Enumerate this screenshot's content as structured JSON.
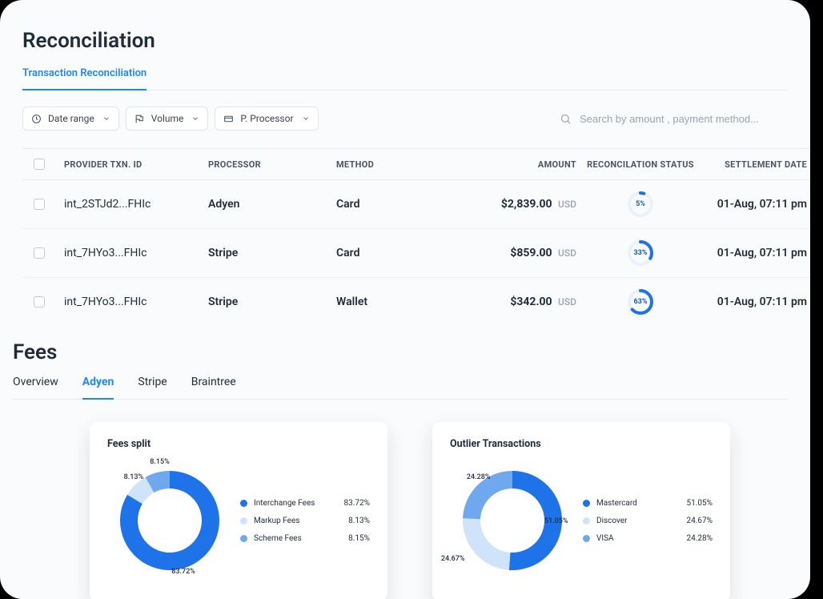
{
  "colors": {
    "accent": "#1e88f2",
    "text": "#1f2c3a",
    "muted": "#9aa4b2",
    "border": "#e6e9ee",
    "bg": "#fafbfc",
    "donut_track": "#e9f1fb",
    "donut_fill": "#1e73e8"
  },
  "reconciliation": {
    "title": "Reconciliation",
    "tab_label": "Transaction Reconciliation",
    "filters": {
      "date_range": "Date range",
      "volume": "Volume",
      "processor": "P. Processor"
    },
    "search_placeholder": "Search by amount , payment method...",
    "columns": {
      "provider_txn": "PROVIDER TXN. ID",
      "processor": "PROCESSOR",
      "method": "METHOD",
      "amount": "AMOUNT",
      "recon": "RECONCILATION STATUS",
      "settlement": "SETTLEMENT DATE"
    },
    "rows": [
      {
        "txn": "int_2STJd2...FHIc",
        "processor": "Adyen",
        "method": "Card",
        "amount": "$2,839.00",
        "currency": "USD",
        "recon_pct": 5,
        "recon_label": "5%",
        "settlement": "01-Aug, 07:11 pm"
      },
      {
        "txn": "int_7HYo3...FHIc",
        "processor": "Stripe",
        "method": "Card",
        "amount": "$859.00",
        "currency": "USD",
        "recon_pct": 33,
        "recon_label": "33%",
        "settlement": "01-Aug, 07:11 pm"
      },
      {
        "txn": "int_7HYo3...FHIc",
        "processor": "Stripe",
        "method": "Wallet",
        "amount": "$342.00",
        "currency": "USD",
        "recon_pct": 63,
        "recon_label": "63%",
        "settlement": "01-Aug, 07:11 pm"
      }
    ]
  },
  "fees": {
    "title": "Fees",
    "tabs": [
      "Overview",
      "Adyen",
      "Stripe",
      "Braintree"
    ],
    "active_tab": "Adyen",
    "cards": [
      {
        "title": "Fees split",
        "type": "donut",
        "inner_radius": 40,
        "outer_radius": 62,
        "slices": [
          {
            "label": "Interchange Fees",
            "value": 83.72,
            "value_label": "83.72%",
            "color": "#1e73e8"
          },
          {
            "label": "Markup Fees",
            "value": 8.13,
            "value_label": "8.13%",
            "color": "#cfe4fb"
          },
          {
            "label": "Scheme Fees",
            "value": 8.15,
            "value_label": "8.15%",
            "color": "#6fa8ef"
          }
        ]
      },
      {
        "title": "Outlier Transactions",
        "type": "donut",
        "inner_radius": 40,
        "outer_radius": 62,
        "slices": [
          {
            "label": "Mastercard",
            "value": 51.05,
            "value_label": "51.05%",
            "color": "#1e73e8"
          },
          {
            "label": "Discover",
            "value": 24.67,
            "value_label": "24.67%",
            "color": "#cfe4fb"
          },
          {
            "label": "VISA",
            "value": 24.28,
            "value_label": "24.28%",
            "color": "#6fa8ef"
          }
        ]
      }
    ]
  }
}
